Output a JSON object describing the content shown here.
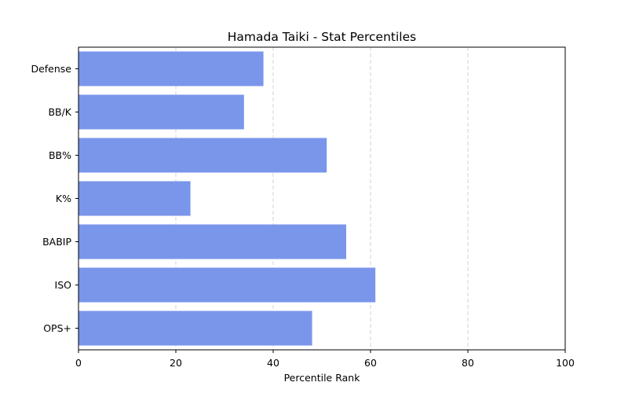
{
  "chart_data": {
    "type": "bar",
    "orientation": "horizontal",
    "title": "Hamada Taiki - Stat Percentiles",
    "xlabel": "Percentile Rank",
    "ylabel": "",
    "categories": [
      "Defense",
      "BB/K",
      "BB%",
      "K%",
      "BABIP",
      "ISO",
      "OPS+"
    ],
    "values": [
      38,
      34,
      51,
      23,
      55,
      61,
      48
    ],
    "xlim": [
      0,
      100
    ],
    "xticks": [
      0,
      20,
      40,
      60,
      80,
      100
    ],
    "grid": "x-axis dashed",
    "legend": "none",
    "bar_color": "#7a96ea",
    "grid_color": "#c8c8c8"
  }
}
